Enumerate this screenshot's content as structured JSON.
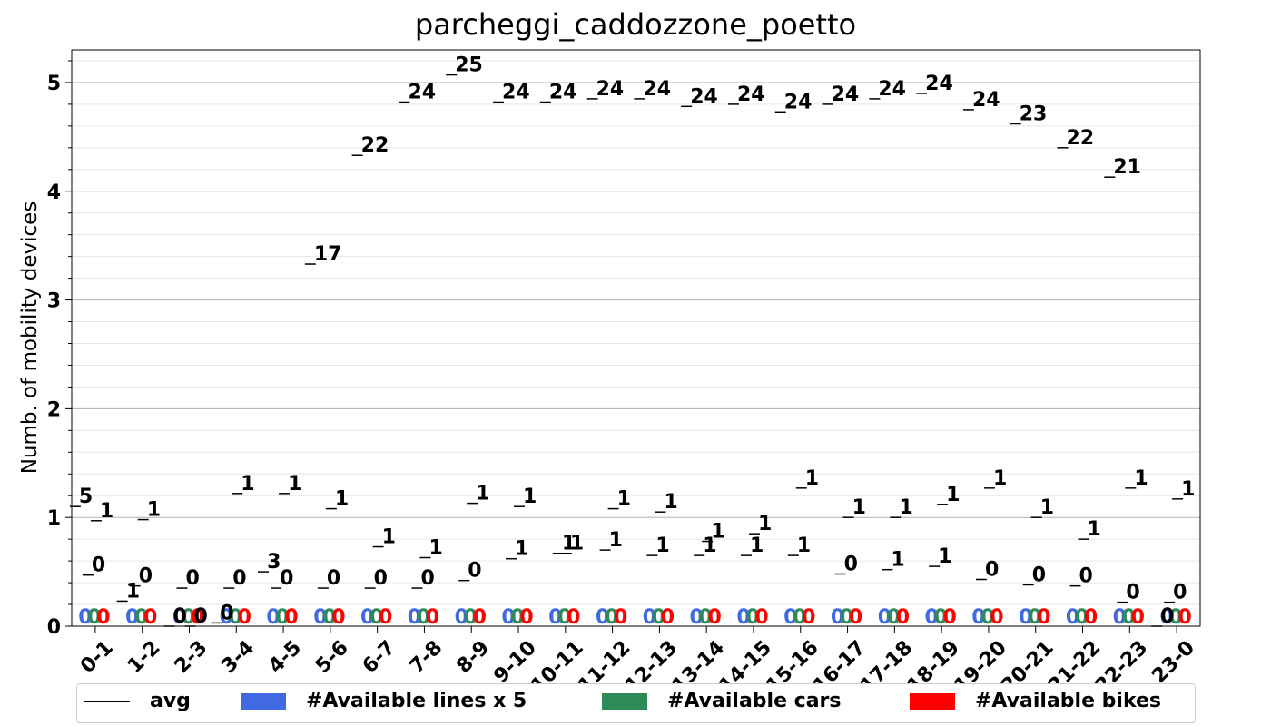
{
  "chart_data": {
    "type": "bar",
    "title": "parcheggi_caddozzone_poetto",
    "xlabel": "",
    "ylabel": "Numb. of mobility devices",
    "ylim": [
      0,
      5.3
    ],
    "yticks": [
      "0",
      "1",
      "2",
      "3",
      "4",
      "5"
    ],
    "grid": true,
    "legend_position": "bottom",
    "categories": [
      "0-1",
      "1-2",
      "2-3",
      "3-4",
      "4-5",
      "5-6",
      "6-7",
      "7-8",
      "8-9",
      "9-10",
      "10-11",
      "11-12",
      "12-13",
      "13-14",
      "14-15",
      "15-16",
      "16-17",
      "17-18",
      "18-19",
      "19-20",
      "20-21",
      "21-22",
      "22-23",
      "23-0"
    ],
    "series": [
      {
        "name": "avg",
        "kind": "line-marker",
        "color": "#000000",
        "values": [
          1.1,
          0.23,
          0.0,
          0.03,
          0.5,
          3.33,
          4.33,
          4.82,
          5.07,
          4.82,
          4.82,
          4.85,
          4.85,
          4.78,
          4.8,
          4.73,
          4.8,
          4.85,
          4.9,
          4.75,
          4.62,
          4.4,
          4.13,
          0.0
        ],
        "labels": [
          "5",
          "1",
          "0",
          "0",
          "3",
          "17",
          "22",
          "24",
          "25",
          "24",
          "24",
          "24",
          "24",
          "24",
          "24",
          "24",
          "24",
          "24",
          "24",
          "24",
          "23",
          "22",
          "21",
          "0"
        ]
      },
      {
        "name": "#Available lines x 5",
        "kind": "bar",
        "color": "#4169e1",
        "values": [
          0,
          0,
          0,
          0,
          0,
          0,
          0,
          0,
          0,
          0,
          0,
          0,
          0,
          0,
          0,
          0,
          0,
          0,
          0,
          0,
          0,
          0,
          0,
          0
        ],
        "labels": [
          "0",
          "0",
          "0",
          "0",
          "0",
          "0",
          "0",
          "0",
          "0",
          "0",
          "0",
          "0",
          "0",
          "0",
          "0",
          "0",
          "0",
          "0",
          "0",
          "0",
          "0",
          "0",
          "0",
          "0"
        ]
      },
      {
        "name": "#Available cars",
        "kind": "bar",
        "color": "#2e8b57",
        "values": [
          0,
          0,
          0,
          0,
          0,
          0,
          0,
          0,
          0,
          0,
          0,
          0,
          0,
          0,
          0,
          0,
          0,
          0,
          0,
          0,
          0,
          0,
          0,
          0
        ],
        "labels": [
          "0",
          "0",
          "0",
          "0",
          "0",
          "0",
          "0",
          "0",
          "0",
          "0",
          "0",
          "0",
          "0",
          "0",
          "0",
          "0",
          "0",
          "0",
          "0",
          "0",
          "0",
          "0",
          "0",
          "0"
        ]
      },
      {
        "name": "#Available bikes",
        "kind": "bar",
        "color": "#ff0000",
        "values": [
          0,
          0,
          0,
          0,
          0,
          0,
          0,
          0,
          0,
          0,
          0,
          0,
          0,
          0,
          0,
          0,
          0,
          0,
          0,
          0,
          0,
          0,
          0,
          0
        ],
        "labels": [
          "0",
          "0",
          "0",
          "0",
          "0",
          "0",
          "0",
          "0",
          "0",
          "0",
          "0",
          "0",
          "0",
          "0",
          "0",
          "0",
          "0",
          "0",
          "0",
          "0",
          "0",
          "0",
          "0",
          "0"
        ]
      }
    ],
    "annotations_upper": {
      "values": [
        0.97,
        0.98,
        0.0,
        1.22,
        1.22,
        1.08,
        0.73,
        0.63,
        1.13,
        1.1,
        0.67,
        1.08,
        1.05,
        0.78,
        0.85,
        1.27,
        1.0,
        1.0,
        1.12,
        1.27,
        1.0,
        0.8,
        1.27,
        1.17
      ],
      "labels": [
        "1",
        "1",
        "0",
        "1",
        "1",
        "1",
        "1",
        "1",
        "1",
        "1",
        "1",
        "1",
        "1",
        "1",
        "1",
        "1",
        "1",
        "1",
        "1",
        "1",
        "1",
        "1",
        "1",
        "1"
      ]
    },
    "annotations_lower": {
      "values": [
        0.47,
        0.37,
        0.35,
        0.35,
        0.35,
        0.35,
        0.35,
        0.35,
        0.42,
        0.62,
        0.67,
        0.7,
        0.65,
        0.65,
        0.65,
        0.65,
        0.48,
        0.52,
        0.55,
        0.43,
        0.38,
        0.37,
        0.22,
        0.22
      ],
      "labels": [
        "0",
        "0",
        "0",
        "0",
        "0",
        "0",
        "0",
        "0",
        "0",
        "1",
        "1",
        "1",
        "1",
        "1",
        "1",
        "1",
        "0",
        "1",
        "1",
        "0",
        "0",
        "0",
        "0",
        "0"
      ]
    }
  }
}
